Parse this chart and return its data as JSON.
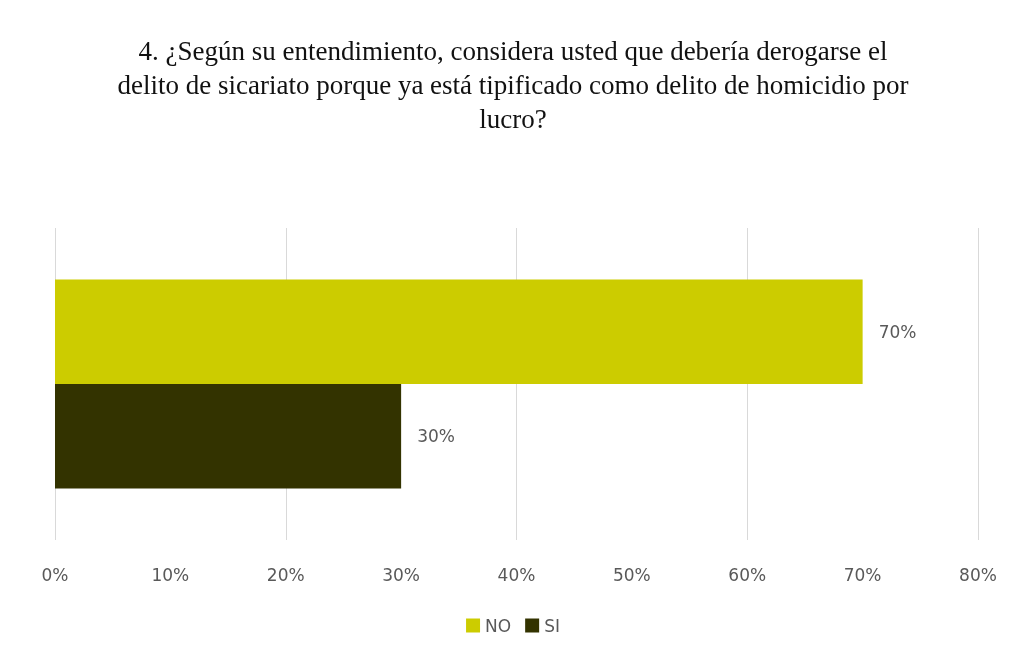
{
  "chart_data": {
    "type": "bar",
    "orientation": "horizontal",
    "title": "4. ¿Según su entendimiento, considera usted que debería derogarse el delito de sicariato porque ya está tipificado como delito de homicidio por lucro?",
    "categories": [
      null
    ],
    "series": [
      {
        "name": "NO",
        "color": "#cccc00",
        "values": [
          70
        ],
        "value_labels": [
          "70%"
        ]
      },
      {
        "name": "SI",
        "color": "#333300",
        "values": [
          30
        ],
        "value_labels": [
          "30%"
        ]
      }
    ],
    "xlim": [
      0,
      80
    ],
    "xticks": [
      {
        "value": 0,
        "label": "0%"
      },
      {
        "value": 10,
        "label": "10%"
      },
      {
        "value": 20,
        "label": "20%"
      },
      {
        "value": 30,
        "label": "30%"
      },
      {
        "value": 40,
        "label": "40%"
      },
      {
        "value": 50,
        "label": "50%"
      },
      {
        "value": 60,
        "label": "60%"
      },
      {
        "value": 70,
        "label": "70%"
      },
      {
        "value": 80,
        "label": "80%"
      }
    ],
    "grid": "x",
    "legend": "bottom"
  }
}
